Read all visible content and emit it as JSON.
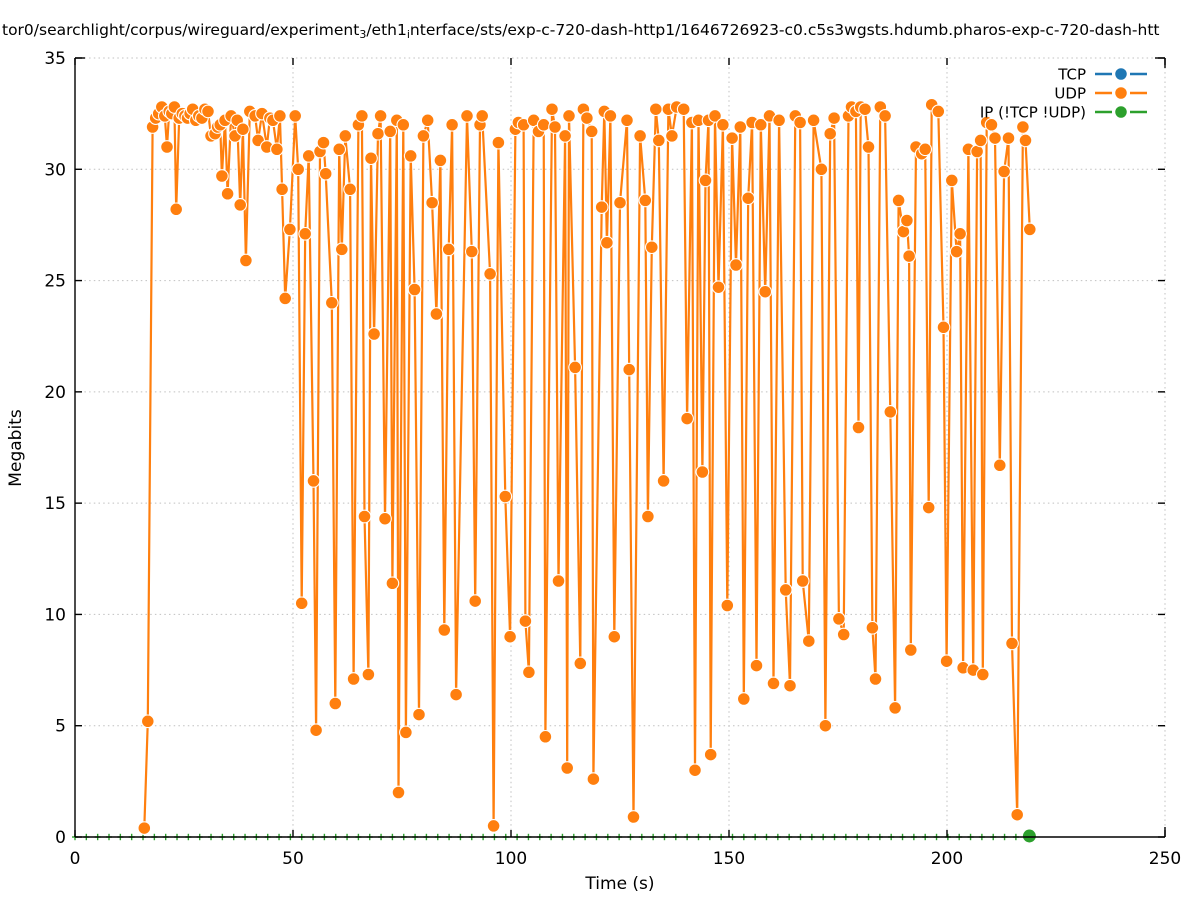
{
  "title": {
    "parts": [
      {
        "text": "tor0/searchlight/corpus/wireguard/experiment"
      },
      {
        "sub": "3"
      },
      {
        "text": "/eth1"
      },
      {
        "sub": "i"
      },
      {
        "text": "nterface/sts/exp-c-720-dash-http1/1646726923-c0.c5s3wgsts.hdumb.pharos-exp-c-720-dash-htt"
      }
    ]
  },
  "chart_data": {
    "type": "line",
    "xlabel": "Time (s)",
    "ylabel": "Megabits",
    "xlim": [
      0,
      250
    ],
    "ylim": [
      0,
      35
    ],
    "xticks": [
      0,
      50,
      100,
      150,
      200,
      250
    ],
    "yticks": [
      0,
      5,
      10,
      15,
      20,
      25,
      30,
      35
    ],
    "grid": "dotted",
    "legend_position": "top-right",
    "legend": [
      {
        "label": "TCP",
        "color": "#1f77b4"
      },
      {
        "label": "UDP",
        "color": "#ff7f0e"
      },
      {
        "label": "IP (!TCP  !UDP)",
        "color": "#2ca02c"
      }
    ],
    "series": [
      {
        "name": "TCP",
        "color": "#1f77b4",
        "points": []
      },
      {
        "name": "UDP",
        "color": "#ff7f0e",
        "points": [
          [
            15.9,
            0.4
          ],
          [
            16.7,
            5.2
          ],
          [
            17.8,
            31.9
          ],
          [
            18.5,
            32.3
          ],
          [
            19.2,
            32.5
          ],
          [
            19.9,
            32.8
          ],
          [
            20.6,
            32.4
          ],
          [
            21.1,
            31.0
          ],
          [
            21.6,
            32.6
          ],
          [
            22.2,
            32.5
          ],
          [
            22.8,
            32.8
          ],
          [
            23.2,
            28.2
          ],
          [
            23.9,
            32.3
          ],
          [
            24.6,
            32.5
          ],
          [
            25.2,
            32.4
          ],
          [
            25.8,
            32.3
          ],
          [
            26.4,
            32.5
          ],
          [
            27.0,
            32.7
          ],
          [
            27.7,
            32.2
          ],
          [
            28.4,
            32.4
          ],
          [
            29.1,
            32.3
          ],
          [
            29.8,
            32.7
          ],
          [
            30.5,
            32.6
          ],
          [
            31.2,
            31.5
          ],
          [
            32.1,
            31.6
          ],
          [
            32.7,
            31.9
          ],
          [
            33.3,
            32.0
          ],
          [
            33.7,
            29.7
          ],
          [
            34.4,
            32.2
          ],
          [
            35.0,
            28.9
          ],
          [
            35.8,
            32.4
          ],
          [
            36.7,
            31.5
          ],
          [
            37.2,
            32.2
          ],
          [
            37.9,
            28.4
          ],
          [
            38.5,
            31.8
          ],
          [
            39.2,
            25.9
          ],
          [
            40.1,
            32.6
          ],
          [
            41.3,
            32.4
          ],
          [
            42.0,
            31.3
          ],
          [
            42.9,
            32.5
          ],
          [
            44.0,
            31.0
          ],
          [
            44.7,
            32.3
          ],
          [
            45.4,
            32.2
          ],
          [
            46.3,
            30.9
          ],
          [
            47.0,
            32.4
          ],
          [
            47.5,
            29.1
          ],
          [
            48.2,
            24.2
          ],
          [
            49.3,
            27.3
          ],
          [
            50.5,
            32.4
          ],
          [
            51.2,
            30.0
          ],
          [
            52.0,
            10.5
          ],
          [
            52.8,
            27.1
          ],
          [
            53.6,
            30.6
          ],
          [
            54.7,
            16.0
          ],
          [
            55.3,
            4.8
          ],
          [
            56.2,
            30.8
          ],
          [
            57.0,
            31.2
          ],
          [
            57.5,
            29.8
          ],
          [
            58.9,
            24.0
          ],
          [
            59.7,
            6.0
          ],
          [
            60.6,
            30.9
          ],
          [
            61.2,
            26.4
          ],
          [
            62.0,
            31.5
          ],
          [
            63.1,
            29.1
          ],
          [
            63.9,
            7.1
          ],
          [
            65.0,
            32.0
          ],
          [
            65.8,
            32.4
          ],
          [
            66.4,
            14.4
          ],
          [
            67.3,
            7.3
          ],
          [
            67.9,
            30.5
          ],
          [
            68.6,
            22.6
          ],
          [
            69.5,
            31.6
          ],
          [
            70.1,
            32.4
          ],
          [
            71.1,
            14.3
          ],
          [
            72.3,
            31.7
          ],
          [
            72.8,
            11.4
          ],
          [
            73.8,
            32.2
          ],
          [
            74.2,
            2.0
          ],
          [
            75.3,
            32.0
          ],
          [
            75.9,
            4.7
          ],
          [
            77.0,
            30.6
          ],
          [
            77.9,
            24.6
          ],
          [
            78.9,
            5.5
          ],
          [
            79.9,
            31.5
          ],
          [
            80.9,
            32.2
          ],
          [
            81.9,
            28.5
          ],
          [
            82.9,
            23.5
          ],
          [
            83.8,
            30.4
          ],
          [
            84.7,
            9.3
          ],
          [
            85.7,
            26.4
          ],
          [
            86.5,
            32.0
          ],
          [
            87.4,
            6.4
          ],
          [
            89.9,
            32.4
          ],
          [
            91.0,
            26.3
          ],
          [
            91.8,
            10.6
          ],
          [
            92.9,
            32.0
          ],
          [
            93.4,
            32.4
          ],
          [
            95.2,
            25.3
          ],
          [
            96.0,
            0.5
          ],
          [
            97.1,
            31.2
          ],
          [
            98.7,
            15.3
          ],
          [
            99.8,
            9.0
          ],
          [
            101.0,
            31.8
          ],
          [
            101.7,
            32.1
          ],
          [
            102.9,
            32.0
          ],
          [
            103.3,
            9.7
          ],
          [
            104.1,
            7.4
          ],
          [
            105.2,
            32.2
          ],
          [
            106.3,
            31.7
          ],
          [
            107.5,
            32.0
          ],
          [
            107.9,
            4.5
          ],
          [
            109.4,
            32.7
          ],
          [
            110.1,
            31.9
          ],
          [
            110.9,
            11.5
          ],
          [
            112.4,
            31.5
          ],
          [
            112.9,
            3.1
          ],
          [
            113.3,
            32.4
          ],
          [
            114.7,
            21.1
          ],
          [
            115.9,
            7.8
          ],
          [
            116.6,
            32.7
          ],
          [
            117.4,
            32.3
          ],
          [
            118.5,
            31.7
          ],
          [
            118.9,
            2.6
          ],
          [
            120.8,
            28.3
          ],
          [
            121.4,
            32.6
          ],
          [
            122.0,
            26.7
          ],
          [
            122.8,
            32.4
          ],
          [
            123.7,
            9.0
          ],
          [
            125.0,
            28.5
          ],
          [
            126.6,
            32.2
          ],
          [
            127.1,
            21.0
          ],
          [
            128.1,
            0.9
          ],
          [
            129.6,
            31.5
          ],
          [
            130.8,
            28.6
          ],
          [
            131.4,
            14.4
          ],
          [
            132.3,
            26.5
          ],
          [
            133.2,
            32.7
          ],
          [
            133.9,
            31.3
          ],
          [
            135.0,
            16.0
          ],
          [
            136.1,
            32.7
          ],
          [
            136.9,
            31.5
          ],
          [
            138.0,
            32.8
          ],
          [
            139.6,
            32.7
          ],
          [
            140.4,
            18.8
          ],
          [
            141.5,
            32.1
          ],
          [
            142.2,
            3.0
          ],
          [
            143.0,
            32.2
          ],
          [
            143.9,
            16.4
          ],
          [
            144.6,
            29.5
          ],
          [
            145.3,
            32.2
          ],
          [
            145.8,
            3.7
          ],
          [
            146.8,
            32.4
          ],
          [
            147.6,
            24.7
          ],
          [
            148.6,
            32.0
          ],
          [
            149.6,
            10.4
          ],
          [
            150.7,
            31.4
          ],
          [
            151.6,
            25.7
          ],
          [
            152.6,
            31.9
          ],
          [
            153.4,
            6.2
          ],
          [
            154.4,
            28.7
          ],
          [
            155.3,
            32.1
          ],
          [
            156.3,
            7.7
          ],
          [
            157.3,
            32.0
          ],
          [
            158.3,
            24.5
          ],
          [
            159.3,
            32.4
          ],
          [
            160.2,
            6.9
          ],
          [
            161.5,
            32.2
          ],
          [
            163.0,
            11.1
          ],
          [
            164.0,
            6.8
          ],
          [
            165.2,
            32.4
          ],
          [
            166.3,
            32.1
          ],
          [
            166.9,
            11.5
          ],
          [
            168.3,
            8.8
          ],
          [
            169.4,
            32.2
          ],
          [
            171.2,
            30.0
          ],
          [
            172.1,
            5.0
          ],
          [
            173.2,
            31.6
          ],
          [
            174.1,
            32.3
          ],
          [
            175.2,
            9.8
          ],
          [
            176.3,
            9.1
          ],
          [
            177.4,
            32.4
          ],
          [
            178.1,
            32.8
          ],
          [
            179.1,
            32.6
          ],
          [
            179.7,
            18.4
          ],
          [
            180.2,
            32.8
          ],
          [
            181.2,
            32.7
          ],
          [
            182.0,
            31.0
          ],
          [
            182.9,
            9.4
          ],
          [
            183.6,
            7.1
          ],
          [
            184.7,
            32.8
          ],
          [
            185.8,
            32.4
          ],
          [
            187.0,
            19.1
          ],
          [
            188.1,
            5.8
          ],
          [
            188.9,
            28.6
          ],
          [
            190.0,
            27.2
          ],
          [
            190.8,
            27.7
          ],
          [
            191.3,
            26.1
          ],
          [
            191.7,
            8.4
          ],
          [
            192.9,
            31.0
          ],
          [
            194.2,
            30.7
          ],
          [
            195.0,
            30.9
          ],
          [
            195.8,
            14.8
          ],
          [
            196.5,
            32.9
          ],
          [
            198.0,
            32.6
          ],
          [
            199.2,
            22.9
          ],
          [
            199.9,
            7.9
          ],
          [
            201.1,
            29.5
          ],
          [
            202.2,
            26.3
          ],
          [
            203.0,
            27.1
          ],
          [
            203.7,
            7.6
          ],
          [
            204.9,
            30.9
          ],
          [
            206.0,
            7.5
          ],
          [
            206.9,
            30.8
          ],
          [
            207.7,
            31.3
          ],
          [
            208.2,
            7.3
          ],
          [
            209.1,
            32.1
          ],
          [
            210.2,
            32.0
          ],
          [
            211.0,
            31.4
          ],
          [
            212.1,
            16.7
          ],
          [
            213.1,
            29.9
          ],
          [
            214.1,
            31.4
          ],
          [
            214.9,
            8.7
          ],
          [
            216.1,
            1.0
          ],
          [
            217.4,
            31.9
          ],
          [
            218.0,
            31.3
          ],
          [
            219.0,
            27.3
          ]
        ]
      },
      {
        "name": "IP (!TCP  !UDP)",
        "color": "#2ca02c",
        "baseline_value": 0,
        "marks_t_start": 0,
        "marks_t_end": 216.8,
        "marks_t_step": 2.6,
        "end_point": [
          218.9,
          0
        ]
      }
    ]
  },
  "style": {
    "grid_color": "#c0c0c0",
    "axis_color": "#000000",
    "background": "#ffffff",
    "marker_edge": "#ffffff"
  }
}
